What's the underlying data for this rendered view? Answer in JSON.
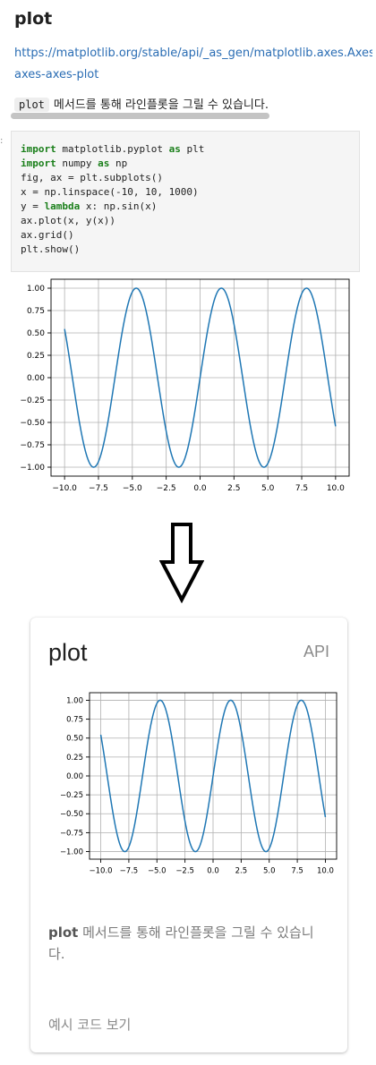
{
  "doc": {
    "title": "plot",
    "link_line1": "https://matplotlib.org/stable/api/_as_gen/matplotlib.axes.Axes.",
    "link_line2": "axes-axes-plot",
    "desc_code": "plot",
    "desc_text": "메서드를 통해 라인플롯을 그릴 수 있습니다.",
    "code_prompt": ":",
    "code_lines": [
      {
        "kw": "import",
        "rest": " matplotlib.pyplot ",
        "kw2": "as",
        "rest2": " plt"
      },
      {
        "kw": "import",
        "rest": " numpy ",
        "kw2": "as",
        "rest2": " np"
      },
      {
        "kw": "",
        "rest": "fig, ax = plt.subplots()",
        "kw2": "",
        "rest2": ""
      },
      {
        "kw": "",
        "rest": "x = np.linspace(-10, 10, 1000)",
        "kw2": "",
        "rest2": ""
      },
      {
        "kw": "",
        "rest": "y = ",
        "kw2": "lambda",
        "rest2": " x: np.sin(x)"
      },
      {
        "kw": "",
        "rest": "ax.plot(x, y(x))",
        "kw2": "",
        "rest2": ""
      },
      {
        "kw": "",
        "rest": "ax.grid()",
        "kw2": "",
        "rest2": ""
      },
      {
        "kw": "",
        "rest": "plt.show()",
        "kw2": "",
        "rest2": ""
      }
    ]
  },
  "card": {
    "title": "plot",
    "api_label": "API",
    "desc_code": "plot",
    "desc_text": " 메서드를 통해 라인플롯을 그릴 수 있습니다.",
    "example_link": "예시 코드 보기"
  },
  "colors": {
    "line": "#1f77b4",
    "grid": "#b0b0b0",
    "link": "#2a6db4"
  },
  "chart_data": [
    {
      "type": "line",
      "function": "sin",
      "x_range": [
        -10,
        10
      ],
      "samples": 1000,
      "xlim": [
        -11,
        11
      ],
      "ylim": [
        -1.1,
        1.1
      ],
      "xticks": [
        -10.0,
        -7.5,
        -5.0,
        -2.5,
        0.0,
        2.5,
        5.0,
        7.5,
        10.0
      ],
      "xtick_labels": [
        "−10.0",
        "−7.5",
        "−5.0",
        "−2.5",
        "0.0",
        "2.5",
        "5.0",
        "7.5",
        "10.0"
      ],
      "yticks": [
        -1.0,
        -0.75,
        -0.5,
        -0.25,
        0.0,
        0.25,
        0.5,
        0.75,
        1.0
      ],
      "ytick_labels": [
        "−1.00",
        "−0.75",
        "−0.50",
        "−0.25",
        "0.00",
        "0.25",
        "0.50",
        "0.75",
        "1.00"
      ],
      "grid": true,
      "title": "",
      "xlabel": "",
      "ylabel": ""
    },
    {
      "type": "line",
      "function": "sin",
      "x_range": [
        -10,
        10
      ],
      "samples": 1000,
      "xlim": [
        -11,
        11
      ],
      "ylim": [
        -1.1,
        1.1
      ],
      "xticks": [
        -10.0,
        -7.5,
        -5.0,
        -2.5,
        0.0,
        2.5,
        5.0,
        7.5,
        10.0
      ],
      "xtick_labels": [
        "−10.0",
        "−7.5",
        "−5.0",
        "−2.5",
        "0.0",
        "2.5",
        "5.0",
        "7.5",
        "10.0"
      ],
      "yticks": [
        -1.0,
        -0.75,
        -0.5,
        -0.25,
        0.0,
        0.25,
        0.5,
        0.75,
        1.0
      ],
      "ytick_labels": [
        "−1.00",
        "−0.75",
        "−0.50",
        "−0.25",
        "0.00",
        "0.25",
        "0.50",
        "0.75",
        "1.00"
      ],
      "grid": true,
      "title": "",
      "xlabel": "",
      "ylabel": ""
    }
  ]
}
